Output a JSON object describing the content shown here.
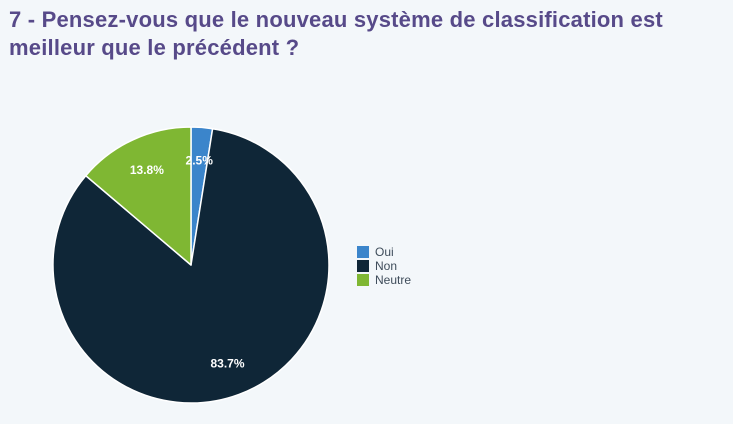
{
  "page": {
    "background_color": "#f3f7fa",
    "title_color": "#574a89",
    "title_lines": [
      "7 - Pensez-vous que le nouveau système de classification est",
      "meilleur que le précédent ?"
    ]
  },
  "chart_data": {
    "type": "pie",
    "title": "7 - Pensez-vous que le nouveau système de classification est meilleur que le précédent ?",
    "labels": [
      "Oui",
      "Non",
      "Neutre"
    ],
    "values": [
      2.5,
      83.7,
      13.8
    ],
    "value_labels": [
      "2.5%",
      "83.7%",
      "13.8%"
    ],
    "colors": [
      "#3b85cb",
      "#0f2637",
      "#7fb733"
    ],
    "slice_label_color": "#ffffff",
    "slice_border_color": "#ffffff",
    "start_angle_deg": 0,
    "direction": "clockwise",
    "legend_position": "right",
    "legend_text_color": "#3e4c5a"
  }
}
